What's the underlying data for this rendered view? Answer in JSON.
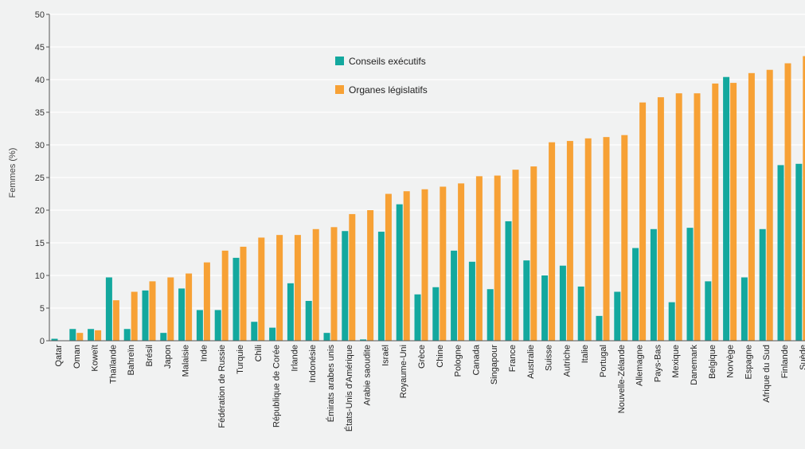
{
  "chart_data": {
    "type": "bar",
    "ylabel": "Femmes (%)",
    "ylim": [
      0,
      50
    ],
    "yticks": [
      0,
      5,
      10,
      15,
      20,
      25,
      30,
      35,
      40,
      45,
      50
    ],
    "legend_position": "top-center",
    "categories": [
      "Qatar",
      "Oman",
      "Koweït",
      "Thaïlande",
      "Bahreïn",
      "Brésil",
      "Japon",
      "Malaisie",
      "Inde",
      "Fédération de Russie",
      "Turquie",
      "Chili",
      "République de Corée",
      "Irlande",
      "Indonésie",
      "Émirats arabes unis",
      "États-Unis d'Amérique",
      "Arabie saoudite",
      "Israël",
      "Royaume-Uni",
      "Grèce",
      "Chine",
      "Pologne",
      "Canada",
      "Singapour",
      "France",
      "Australie",
      "Suisse",
      "Autriche",
      "Italie",
      "Portugal",
      "Nouvelle-Zélande",
      "Allemagne",
      "Pays-Bas",
      "Mexique",
      "Danemark",
      "Belgique",
      "Norvège",
      "Espagne",
      "Afrique du Sud",
      "Finlande",
      "Suède"
    ],
    "series": [
      {
        "name": "Conseils exécutifs",
        "color": "#13a89e",
        "values": [
          0.3,
          1.8,
          1.8,
          9.7,
          1.8,
          7.7,
          1.2,
          8.0,
          4.7,
          4.7,
          12.7,
          2.9,
          2.0,
          8.8,
          6.1,
          1.2,
          16.8,
          0.2,
          16.7,
          20.9,
          7.1,
          8.2,
          13.8,
          12.1,
          7.9,
          18.3,
          12.3,
          10.0,
          11.5,
          8.3,
          3.8,
          7.5,
          14.2,
          17.1,
          5.9,
          17.3,
          9.1,
          40.4,
          9.7,
          17.1,
          26.9,
          27.1
        ]
      },
      {
        "name": "Organes législatifs",
        "color": "#f7a135",
        "values": [
          0,
          1.2,
          1.6,
          6.2,
          7.5,
          9.1,
          9.7,
          10.3,
          12.0,
          13.8,
          14.4,
          15.8,
          16.2,
          16.2,
          17.1,
          17.4,
          19.4,
          20.0,
          22.5,
          22.9,
          23.2,
          23.6,
          24.1,
          25.2,
          25.3,
          26.2,
          26.7,
          30.4,
          30.6,
          31.0,
          31.2,
          31.5,
          36.5,
          37.3,
          37.9,
          37.9,
          39.4,
          39.5,
          41.0,
          41.5,
          42.5,
          43.6
        ]
      }
    ]
  }
}
